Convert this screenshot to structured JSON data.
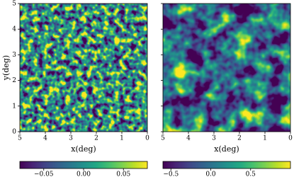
{
  "chart_data": [
    {
      "type": "heatmap",
      "xlabel": "x(deg)",
      "ylabel": "y(deg)",
      "colormap": "viridis",
      "xlim": [
        5,
        0
      ],
      "ylim": [
        0,
        5
      ],
      "xticks": [
        5,
        4,
        3,
        2,
        1,
        0
      ],
      "yticks": [
        0,
        1,
        2,
        3,
        4,
        5
      ],
      "show_ytick_labels": true,
      "colorbar": {
        "clim": [
          -0.08,
          0.08
        ],
        "ticks": [
          {
            "value": -0.05,
            "label": "−0.05"
          },
          {
            "value": 0,
            "label": "0.00"
          },
          {
            "value": 0.05,
            "label": "0.05"
          }
        ]
      }
    },
    {
      "type": "heatmap",
      "xlabel": "x(deg)",
      "colormap": "viridis",
      "xlim": [
        5,
        0
      ],
      "ylim": [
        0,
        5
      ],
      "xticks": [
        5,
        4,
        3,
        2,
        1,
        0
      ],
      "yticks": [
        0,
        1,
        2,
        3,
        4,
        5
      ],
      "show_ytick_labels": false,
      "colorbar": {
        "clim": [
          -0.6,
          1.0
        ],
        "ticks": [
          {
            "value": -0.5,
            "label": "−0.5"
          },
          {
            "value": 0,
            "label": "0.0"
          },
          {
            "value": 0.5,
            "label": "0.5"
          }
        ]
      }
    }
  ]
}
